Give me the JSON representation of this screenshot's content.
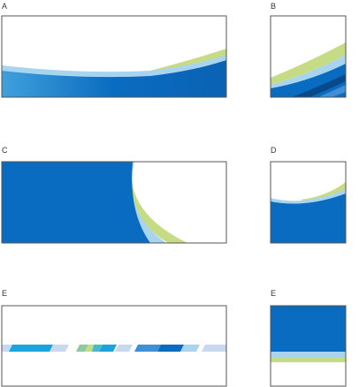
{
  "panels": [
    {
      "label": "A"
    },
    {
      "label": "B"
    },
    {
      "label": "C"
    },
    {
      "label": "D"
    },
    {
      "label": "E"
    },
    {
      "label": "E"
    }
  ]
}
